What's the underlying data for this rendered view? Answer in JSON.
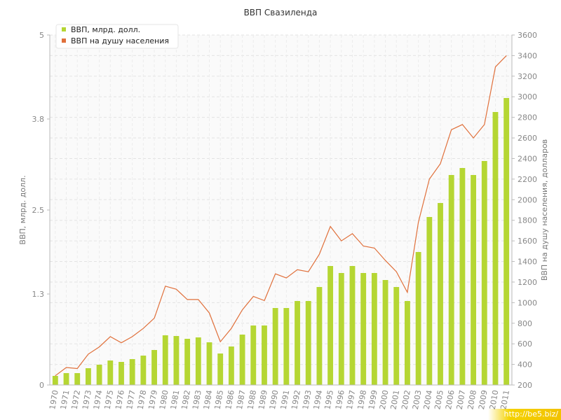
{
  "chart_data": {
    "type": "bar",
    "title": "ВВП Свазиленда",
    "ylabel": "ВВП, млрд. долл.",
    "y2label": "ВВП на душу населения, долларов",
    "ylim": [
      0,
      5
    ],
    "y2lim": [
      200,
      3600
    ],
    "y_ticks": [
      "0",
      "1.3",
      "2.5",
      "3.8",
      "5"
    ],
    "y2_ticks": [
      "200",
      "400",
      "600",
      "800",
      "1000",
      "1200",
      "1400",
      "1600",
      "1800",
      "2000",
      "2200",
      "2400",
      "2600",
      "2800",
      "3000",
      "3200",
      "3400",
      "3600"
    ],
    "grid": true,
    "legend_position": "top-left",
    "categories": [
      "1970",
      "1971",
      "1972",
      "1973",
      "1974",
      "1975",
      "1976",
      "1977",
      "1978",
      "1979",
      "1980",
      "1981",
      "1982",
      "1983",
      "1984",
      "1985",
      "1986",
      "1987",
      "1988",
      "1989",
      "1990",
      "1991",
      "1992",
      "1993",
      "1994",
      "1995",
      "1996",
      "1997",
      "1998",
      "1999",
      "2000",
      "2001",
      "2002",
      "2003",
      "2004",
      "2005",
      "2006",
      "2007",
      "2008",
      "2009",
      "2010",
      "2011"
    ],
    "series": [
      {
        "name": "ВВП, млрд. долл.",
        "type": "bar",
        "axis": "left",
        "color": "#b5d633",
        "values": [
          0.13,
          0.17,
          0.17,
          0.24,
          0.29,
          0.35,
          0.33,
          0.37,
          0.42,
          0.5,
          0.71,
          0.7,
          0.66,
          0.68,
          0.61,
          0.45,
          0.55,
          0.72,
          0.85,
          0.85,
          1.1,
          1.1,
          1.2,
          1.2,
          1.4,
          1.7,
          1.6,
          1.7,
          1.6,
          1.6,
          1.5,
          1.4,
          1.2,
          1.9,
          2.4,
          2.6,
          3.0,
          3.1,
          3.0,
          3.2,
          3.9,
          4.1
        ]
      },
      {
        "name": "ВВП на душу населения",
        "type": "line",
        "axis": "right",
        "color": "#e0703b",
        "values": [
          290,
          370,
          360,
          500,
          570,
          670,
          610,
          670,
          750,
          850,
          1160,
          1130,
          1030,
          1030,
          900,
          620,
          750,
          930,
          1060,
          1020,
          1280,
          1240,
          1320,
          1300,
          1470,
          1740,
          1600,
          1670,
          1550,
          1530,
          1410,
          1300,
          1100,
          1780,
          2200,
          2350,
          2680,
          2730,
          2600,
          2730,
          3290,
          3400
        ]
      }
    ]
  },
  "watermark": "http://be5.biz/"
}
